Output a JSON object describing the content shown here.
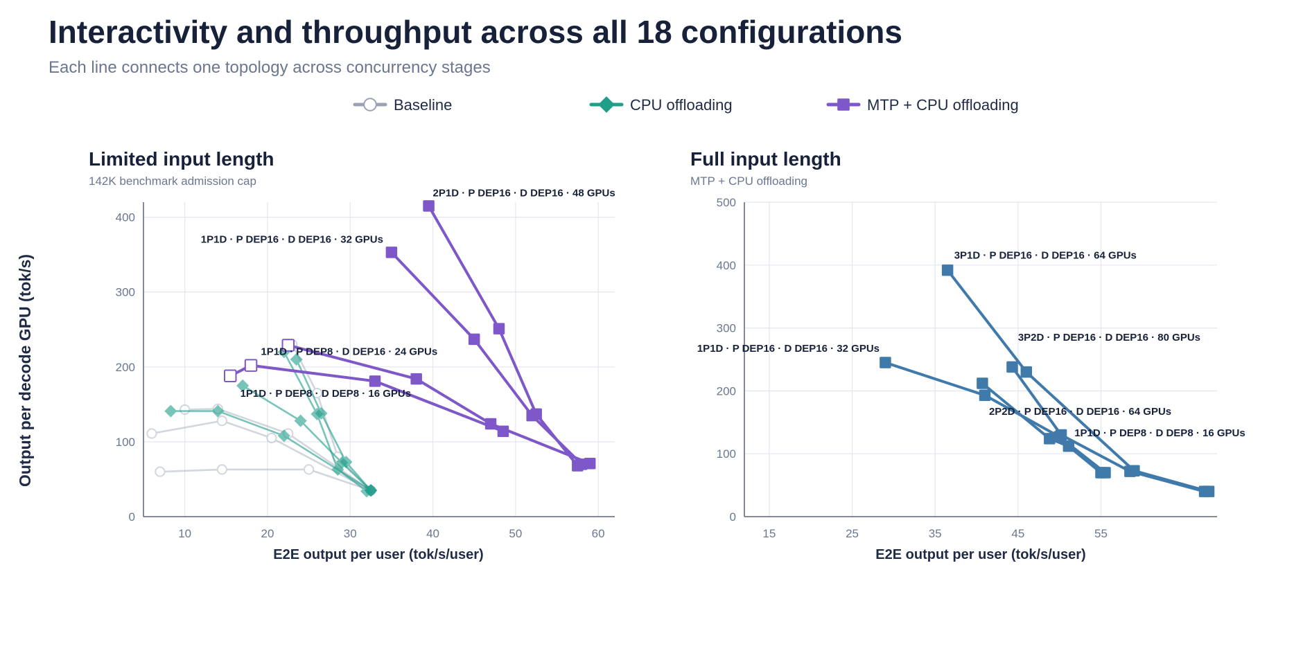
{
  "title": "Interactivity and throughput across all 18 configurations",
  "subtitle": "Each line connects one topology across concurrency stages",
  "ylabel": "Output per decode GPU (tok/s)",
  "legend": [
    {
      "label": "Baseline",
      "color": "#9aa3b5",
      "marker": "circle-open"
    },
    {
      "label": "CPU offloading",
      "color": "#1f9e89",
      "marker": "diamond"
    },
    {
      "label": "MTP + CPU offloading",
      "color": "#7e57c9",
      "marker": "square"
    }
  ],
  "chart_data": [
    {
      "type": "line",
      "title": "Limited input length",
      "subtitle": "142K benchmark admission cap",
      "xlabel": "E2E output per user (tok/s/user)",
      "ylabel": "Output per decode GPU (tok/s)",
      "xlim": [
        5,
        62
      ],
      "ylim": [
        0,
        420
      ],
      "xticks": [
        10,
        20,
        30,
        40,
        50,
        60
      ],
      "yticks": [
        0,
        100,
        200,
        300,
        400
      ],
      "grid": true,
      "series": [
        {
          "group": "Baseline",
          "color": "#aeb5c3",
          "marker": "circle-open",
          "points": [
            [
              7,
              60
            ],
            [
              14.5,
              63
            ],
            [
              25,
              63
            ],
            [
              32.5,
              35
            ]
          ]
        },
        {
          "group": "Baseline",
          "color": "#aeb5c3",
          "marker": "circle-open",
          "points": [
            [
              6,
              111
            ],
            [
              14.5,
              128
            ],
            [
              20.5,
              105
            ],
            [
              32.5,
              35
            ]
          ]
        },
        {
          "group": "Baseline",
          "color": "#aeb5c3",
          "marker": "circle-open",
          "points": [
            [
              10,
              143
            ],
            [
              14,
              144
            ],
            [
              22.5,
              111
            ],
            [
              32.5,
              35
            ]
          ]
        },
        {
          "group": "Baseline",
          "color": "#aeb5c3",
          "marker": "circle-open",
          "points": [
            [
              23,
              230
            ],
            [
              26,
              165
            ],
            [
              28.5,
              80
            ],
            [
              32.5,
              35
            ]
          ]
        },
        {
          "group": "CPU offloading",
          "color": "#1f9e89",
          "marker": "diamond",
          "points": [
            [
              8.3,
              141
            ],
            [
              14,
              141
            ],
            [
              22,
              108
            ],
            [
              32.5,
              35
            ]
          ]
        },
        {
          "group": "CPU offloading",
          "color": "#1f9e89",
          "marker": "diamond",
          "points": [
            [
              17,
              175
            ],
            [
              24,
              128
            ],
            [
              29,
              72
            ],
            [
              32.5,
              35
            ]
          ]
        },
        {
          "group": "CPU offloading",
          "color": "#1f9e89",
          "marker": "diamond",
          "points": [
            [
              22,
              220
            ],
            [
              26,
              137
            ],
            [
              28.5,
              63
            ],
            [
              32,
              34
            ]
          ]
        },
        {
          "group": "CPU offloading",
          "color": "#1f9e89",
          "marker": "diamond",
          "points": [
            [
              23.5,
              210
            ],
            [
              26.5,
              138
            ],
            [
              29.5,
              73
            ],
            [
              32.5,
              35
            ]
          ]
        },
        {
          "group": "MTP + CPU offloading",
          "color": "#7e57c9",
          "marker": "square",
          "points": [
            [
              35,
              353
            ],
            [
              45,
              237
            ],
            [
              52,
              135
            ],
            [
              58,
              70
            ]
          ]
        },
        {
          "group": "MTP + CPU offloading",
          "color": "#7e57c9",
          "marker": "square",
          "points": [
            [
              39.5,
              415
            ],
            [
              48,
              251
            ],
            [
              52.5,
              137
            ],
            [
              57.5,
              68
            ]
          ]
        },
        {
          "group": "MTP + CPU offloading",
          "color": "#7e57c9",
          "marker": "square",
          "points": [
            [
              22.5,
              229
            ],
            [
              38,
              184
            ],
            [
              47,
              124
            ],
            [
              59,
              71
            ]
          ]
        },
        {
          "group": "MTP + CPU offloading",
          "color": "#7e57c9",
          "marker": "square",
          "points": [
            [
              15.5,
              188
            ],
            [
              18,
              202
            ],
            [
              33,
              181
            ],
            [
              48.5,
              114
            ]
          ]
        }
      ],
      "annotations": [
        {
          "text": "2P1D · P DEP16 · D DEP16 · 48 GPUs",
          "x": 40,
          "y": 428,
          "anchor": "start"
        },
        {
          "text": "1P1D · P DEP16 · D DEP16 · 32 GPUs",
          "x": 34,
          "y": 366,
          "anchor": "end"
        },
        {
          "text": "1P1D · P DEP8 · D DEP16 · 24 GPUs",
          "x": 19.2,
          "y": 216,
          "anchor": "start"
        },
        {
          "text": "1P1D · P DEP8 · D DEP8 · 16 GPUs",
          "x": 16.7,
          "y": 160,
          "anchor": "start"
        }
      ]
    },
    {
      "type": "line",
      "title": "Full input length",
      "subtitle": "MTP + CPU offloading",
      "xlabel": "E2E output per user (tok/s/user)",
      "ylabel": "",
      "xlim": [
        12,
        69
      ],
      "ylim": [
        0,
        500
      ],
      "xticks": [
        15,
        25,
        35,
        45,
        55
      ],
      "yticks": [
        0,
        100,
        200,
        300,
        400,
        500
      ],
      "grid": true,
      "series": [
        {
          "group": "MTP + CPU offloading",
          "color": "#3f7aab",
          "marker": "square",
          "points": [
            [
              36.5,
              392
            ],
            [
              46,
              230
            ],
            [
              59,
              73
            ],
            [
              68,
              40
            ]
          ]
        },
        {
          "group": "MTP + CPU offloading",
          "color": "#3f7aab",
          "marker": "square",
          "points": [
            [
              44.3,
              238
            ],
            [
              50.2,
              130
            ],
            [
              58.5,
              72
            ],
            [
              67.5,
              40
            ]
          ]
        },
        {
          "group": "MTP + CPU offloading",
          "color": "#3f7aab",
          "marker": "square",
          "points": [
            [
              29,
              245
            ],
            [
              41,
              193
            ],
            [
              50,
              127
            ],
            [
              55.5,
              70
            ]
          ]
        },
        {
          "group": "MTP + CPU offloading",
          "color": "#3f7aab",
          "marker": "square",
          "points": [
            [
              40.7,
              212
            ],
            [
              48.8,
              124
            ],
            [
              51.1,
              112
            ],
            [
              55,
              70
            ]
          ]
        }
      ],
      "annotations": [
        {
          "text": "3P1D · P DEP16 · D DEP16 · 64 GPUs",
          "x": 37.3,
          "y": 410,
          "anchor": "start"
        },
        {
          "text": "3P2D · P DEP16 · D DEP16 · 80 GPUs",
          "x": 45,
          "y": 280,
          "anchor": "start"
        },
        {
          "text": "1P1D · P DEP16 · D DEP16 · 32 GPUs",
          "x": 28.3,
          "y": 262,
          "anchor": "end"
        },
        {
          "text": "2P2D · P DEP16 · D DEP16 · 64 GPUs",
          "x": 41.5,
          "y": 162,
          "anchor": "start"
        },
        {
          "text": "1P1D · P DEP8 · D DEP8 · 16 GPUs",
          "x": 51.8,
          "y": 128,
          "anchor": "start"
        }
      ]
    }
  ]
}
